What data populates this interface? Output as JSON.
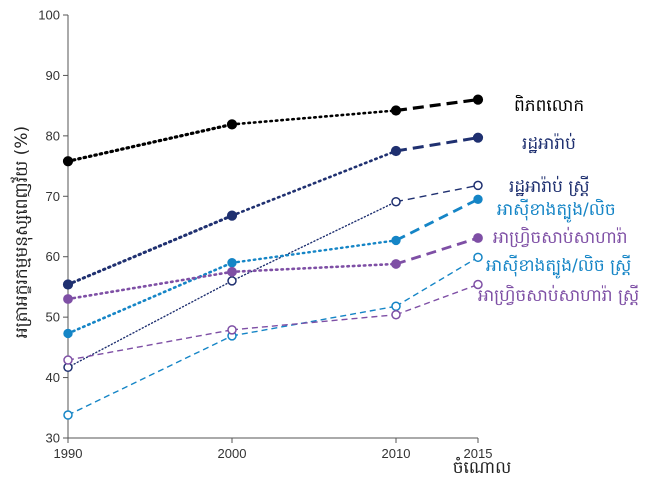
{
  "chart_data": {
    "type": "line",
    "title": "",
    "xlabel": "ចំណោល",
    "ylabel": "អត្រាអក្ខរកម្មមនុស្សពេញវ័យ (%)",
    "x": [
      1990,
      2000,
      2010,
      2015
    ],
    "x_ticks": [
      "1990",
      "2000",
      "2010",
      "2015"
    ],
    "ylim": [
      30,
      100
    ],
    "y_ticks": [
      "30",
      "40",
      "50",
      "60",
      "70",
      "80",
      "90",
      "100"
    ],
    "grid": false,
    "series": [
      {
        "name": "ពិភពលោក",
        "values": [
          75.8,
          81.9,
          84.2,
          86.0
        ],
        "color": "#000000",
        "marker": "filled"
      },
      {
        "name": "រដ្ឋអារ៉ាប់",
        "values": [
          55.4,
          66.8,
          77.5,
          79.7
        ],
        "color": "#1f3070",
        "marker": "filled"
      },
      {
        "name": "រដ្ឋអារ៉ាប់ ស្ត្រី",
        "values": [
          41.7,
          56.0,
          69.1,
          71.8
        ],
        "color": "#1f3070",
        "marker": "open"
      },
      {
        "name": "អាស៊ីខាងត្បូង/លិច",
        "values": [
          47.3,
          59.0,
          62.7,
          69.5
        ],
        "color": "#1585c6",
        "marker": "filled"
      },
      {
        "name": "អាហ្វ្រិចសាប់សាហារ៉ា",
        "values": [
          53.0,
          57.5,
          58.8,
          63.1
        ],
        "color": "#7e4fa5",
        "marker": "filled"
      },
      {
        "name": "អាស៊ីខាងត្បូង/លិច ស្ត្រី",
        "values": [
          33.8,
          46.9,
          51.8,
          59.9
        ],
        "color": "#1585c6",
        "marker": "open"
      },
      {
        "name": "អាហ្វ្រិចសាប់សាហារ៉ា ស្ត្រី",
        "values": [
          42.9,
          47.9,
          50.4,
          55.4
        ],
        "color": "#7e4fa5",
        "marker": "open"
      }
    ]
  }
}
